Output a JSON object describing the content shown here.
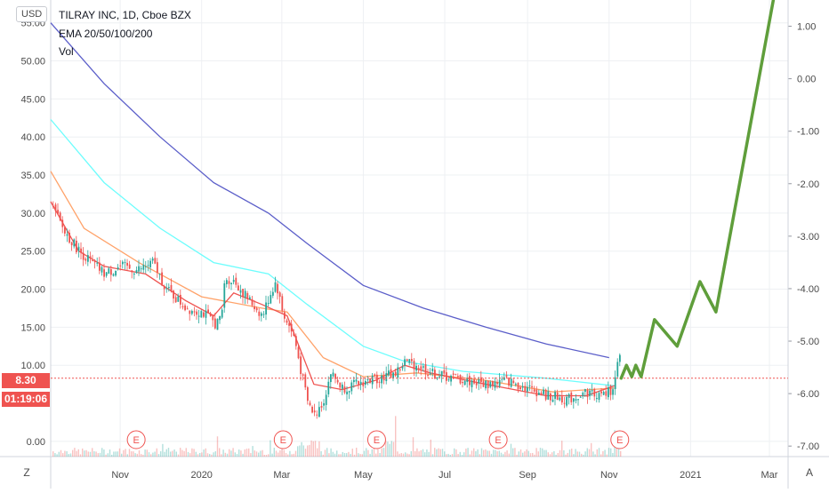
{
  "legend": {
    "title": "TILRAY INC, 1D, Cboe BZX",
    "indicator": "EMA 20/50/100/200",
    "volume": "Vol"
  },
  "toolbar": {
    "currency": "USD",
    "zoom_button": "Z",
    "auto_button": "A"
  },
  "price_label": {
    "value": "8.30",
    "color": "#ef5350"
  },
  "countdown_label": {
    "value": "01:19:06",
    "color": "#ef5350"
  },
  "earnings_marker": "E",
  "colors": {
    "ema20": "#ef5350",
    "ema50": "#ffa269",
    "ema100": "#6dfdfd",
    "ema200": "#5b5ec9",
    "projection": "#5f9e3b",
    "up": "#26a69a",
    "down": "#ef5350",
    "grid": "#eef0f3",
    "text": "#4a4a4a"
  },
  "chart_data": {
    "type": "line",
    "title": "TILRAY INC, 1D, Cboe BZX",
    "x_ticks": [
      "Nov",
      "2020",
      "Mar",
      "May",
      "Jul",
      "Sep",
      "Nov",
      "2021",
      "Mar"
    ],
    "y_left_ticks": [
      "55.00",
      "50.00",
      "45.00",
      "40.00",
      "35.00",
      "30.00",
      "25.00",
      "20.00",
      "15.00",
      "10.00",
      "0.00"
    ],
    "y_right_ticks": [
      "1.00",
      "0.00",
      "-1.00",
      "-2.00",
      "-3.00",
      "-4.00",
      "-5.00",
      "-6.00",
      "-7.00"
    ],
    "ylim_left": [
      -2,
      58
    ],
    "ylim_right": [
      -7.2,
      1.5
    ],
    "current_price": 8.3,
    "earnings_dates": [
      "2019-11-13",
      "2020-03-02",
      "2020-05-11",
      "2020-08-10",
      "2020-11-09"
    ],
    "series": [
      {
        "key": "ema200",
        "style": "line",
        "color": "#5b5ec9",
        "points": [
          [
            "2019-09-10",
            55
          ],
          [
            "2019-10-20",
            47
          ],
          [
            "2019-12-01",
            40
          ],
          [
            "2020-01-10",
            34
          ],
          [
            "2020-02-20",
            30
          ],
          [
            "2020-03-20",
            26
          ],
          [
            "2020-05-01",
            20.5
          ],
          [
            "2020-06-15",
            17.5
          ],
          [
            "2020-08-01",
            15
          ],
          [
            "2020-09-15",
            12.8
          ],
          [
            "2020-11-01",
            11
          ]
        ]
      },
      {
        "key": "ema100",
        "style": "line",
        "color": "#6dfdfd",
        "points": [
          [
            "2019-09-10",
            42.3
          ],
          [
            "2019-10-20",
            34
          ],
          [
            "2019-12-01",
            28
          ],
          [
            "2020-01-10",
            23.5
          ],
          [
            "2020-02-20",
            22
          ],
          [
            "2020-03-20",
            18
          ],
          [
            "2020-05-01",
            12.5
          ],
          [
            "2020-06-01",
            10.5
          ],
          [
            "2020-07-15",
            9.2
          ],
          [
            "2020-09-15",
            8.3
          ],
          [
            "2020-11-05",
            7.3
          ]
        ]
      },
      {
        "key": "ema50",
        "style": "line",
        "color": "#ffa269",
        "points": [
          [
            "2019-09-10",
            35.5
          ],
          [
            "2019-10-05",
            28
          ],
          [
            "2019-11-15",
            23.5
          ],
          [
            "2020-01-01",
            19
          ],
          [
            "2020-02-15",
            17.5
          ],
          [
            "2020-03-05",
            17
          ],
          [
            "2020-04-01",
            11
          ],
          [
            "2020-05-01",
            8.5
          ],
          [
            "2020-06-10",
            9
          ],
          [
            "2020-08-01",
            8
          ],
          [
            "2020-09-20",
            6.5
          ],
          [
            "2020-11-05",
            7
          ]
        ]
      },
      {
        "key": "ema20",
        "style": "line",
        "color": "#ef5350",
        "points": [
          [
            "2019-09-10",
            31.5
          ],
          [
            "2019-10-01",
            25
          ],
          [
            "2019-10-20",
            23
          ],
          [
            "2019-11-20",
            22
          ],
          [
            "2019-12-20",
            18.5
          ],
          [
            "2020-01-10",
            16.5
          ],
          [
            "2020-01-25",
            19.5
          ],
          [
            "2020-02-15",
            18
          ],
          [
            "2020-03-05",
            16.5
          ],
          [
            "2020-03-25",
            7.5
          ],
          [
            "2020-04-15",
            6.8
          ],
          [
            "2020-05-10",
            8
          ],
          [
            "2020-06-01",
            10
          ],
          [
            "2020-06-20",
            9
          ],
          [
            "2020-08-01",
            7.5
          ],
          [
            "2020-09-15",
            6
          ],
          [
            "2020-10-15",
            6
          ],
          [
            "2020-11-05",
            7.3
          ]
        ]
      },
      {
        "key": "price",
        "style": "candles",
        "color": "#26a69a",
        "points": [
          [
            "2019-09-10",
            31
          ],
          [
            "2019-09-20",
            27.5
          ],
          [
            "2019-10-01",
            25
          ],
          [
            "2019-10-10",
            23.5
          ],
          [
            "2019-10-20",
            22
          ],
          [
            "2019-11-01",
            23
          ],
          [
            "2019-11-13",
            22.5
          ],
          [
            "2019-11-25",
            23.5
          ],
          [
            "2019-12-05",
            20
          ],
          [
            "2019-12-20",
            17.5
          ],
          [
            "2020-01-01",
            17
          ],
          [
            "2020-01-10",
            15.5
          ],
          [
            "2020-01-15",
            16
          ],
          [
            "2020-01-18",
            21.5
          ],
          [
            "2020-01-25",
            21
          ],
          [
            "2020-02-05",
            18.5
          ],
          [
            "2020-02-15",
            16.5
          ],
          [
            "2020-02-20",
            19
          ],
          [
            "2020-02-25",
            21
          ],
          [
            "2020-03-01",
            17
          ],
          [
            "2020-03-10",
            13.5
          ],
          [
            "2020-03-15",
            9
          ],
          [
            "2020-03-20",
            5
          ],
          [
            "2020-03-25",
            3.5
          ],
          [
            "2020-04-01",
            5.5
          ],
          [
            "2020-04-06",
            9
          ],
          [
            "2020-04-15",
            7
          ],
          [
            "2020-04-25",
            7.5
          ],
          [
            "2020-05-05",
            8
          ],
          [
            "2020-05-15",
            8.5
          ],
          [
            "2020-05-25",
            9
          ],
          [
            "2020-06-01",
            10.5
          ],
          [
            "2020-06-10",
            10
          ],
          [
            "2020-06-20",
            9
          ],
          [
            "2020-07-01",
            8.5
          ],
          [
            "2020-07-15",
            8
          ],
          [
            "2020-08-01",
            7.5
          ],
          [
            "2020-08-15",
            8
          ],
          [
            "2020-09-01",
            7
          ],
          [
            "2020-09-15",
            6
          ],
          [
            "2020-10-01",
            5.5
          ],
          [
            "2020-10-15",
            6.5
          ],
          [
            "2020-10-25",
            6
          ],
          [
            "2020-11-01",
            6.5
          ],
          [
            "2020-11-05",
            8
          ],
          [
            "2020-11-08",
            11.5
          ],
          [
            "2020-11-10",
            8.3
          ]
        ]
      },
      {
        "key": "projection",
        "style": "line",
        "color": "#5f9e3b",
        "points": [
          [
            "2020-11-10",
            8.3
          ],
          [
            "2020-11-14",
            10
          ],
          [
            "2020-11-18",
            8.5
          ],
          [
            "2020-11-21",
            10
          ],
          [
            "2020-11-25",
            8.5
          ],
          [
            "2020-12-05",
            16
          ],
          [
            "2020-12-22",
            12.5
          ],
          [
            "2021-01-08",
            21
          ],
          [
            "2021-01-20",
            17
          ],
          [
            "2021-03-05",
            59
          ]
        ]
      }
    ]
  }
}
